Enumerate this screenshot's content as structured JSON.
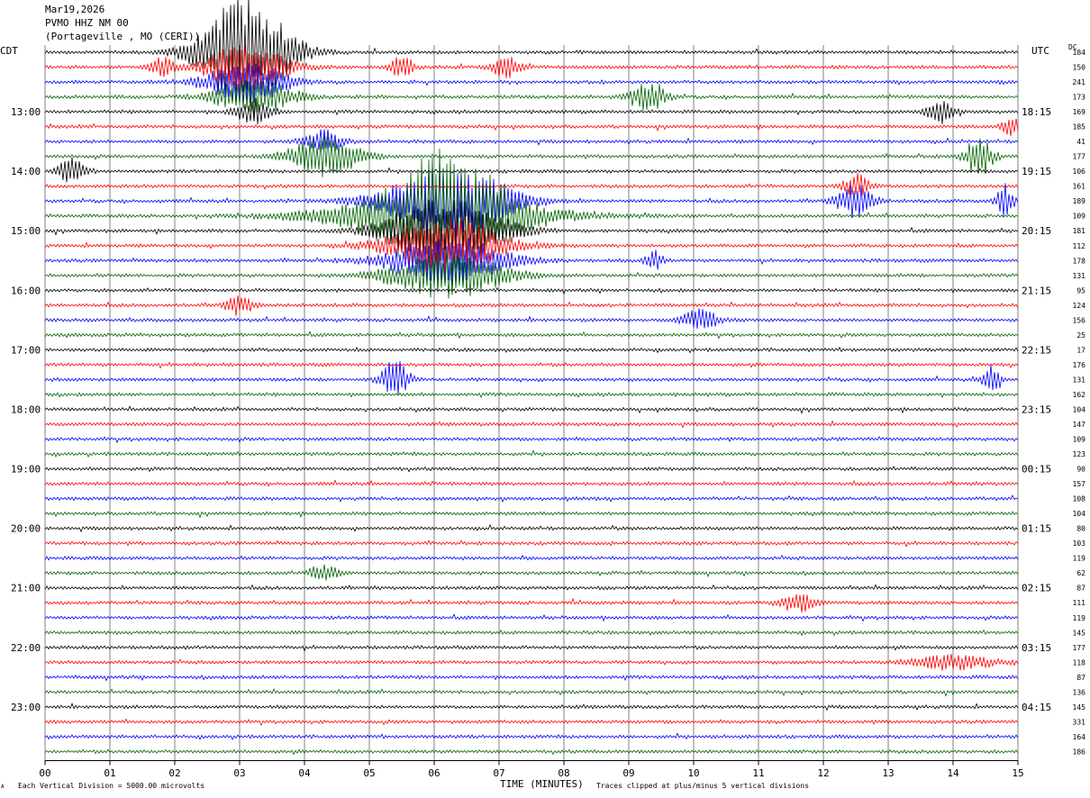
{
  "header": {
    "date": "Mar19,2026",
    "station": "PVMO HHZ NM 00",
    "location": "(Portageville , MO (CERI))"
  },
  "left_zone": "CDT",
  "right_zone": "UTC",
  "dc_label": "DC",
  "footer": {
    "scale_note": "Each Vertical Division = 5000.00 microvolts",
    "clip_note": "Traces clipped at plus/minus 5 vertical divisions",
    "corner_mark": "A"
  },
  "colors": {
    "cycle": [
      "#000000",
      "#ff0000",
      "#0000ff",
      "#006400"
    ],
    "grid": "#808080"
  },
  "chart_data": {
    "type": "line",
    "xlabel": "TIME (MINUTES)",
    "xlim": [
      0,
      15
    ],
    "x_ticks": [
      "00",
      "01",
      "02",
      "03",
      "04",
      "05",
      "06",
      "07",
      "08",
      "09",
      "10",
      "11",
      "12",
      "13",
      "14",
      "15"
    ],
    "left_hour_labels": [
      "13:00",
      "14:00",
      "15:00",
      "16:00",
      "17:00",
      "18:00",
      "19:00",
      "20:00",
      "21:00",
      "22:00",
      "23:00"
    ],
    "right_hour_labels": [
      "18:15",
      "19:15",
      "20:15",
      "21:15",
      "22:15",
      "23:15",
      "00:15",
      "01:15",
      "02:15",
      "03:15",
      "04:15"
    ],
    "dc_values": [
      "184",
      "150",
      "241",
      "173",
      "169",
      "185",
      "41",
      "177",
      "106",
      "161",
      "189",
      "109",
      "181",
      "112",
      "178",
      "131",
      "95",
      "124",
      "156",
      "25",
      "17",
      "176",
      "131",
      "162",
      "104",
      "147",
      "109",
      "123",
      "90",
      "157",
      "108",
      "104",
      "80",
      "103",
      "119",
      "62",
      "87",
      "111",
      "119",
      "145",
      "177",
      "118",
      "87",
      "136",
      "145",
      "331",
      "164",
      "186"
    ],
    "events": [
      {
        "trace": 0,
        "center": 3.1,
        "width": 1.0,
        "amp": 7.0
      },
      {
        "trace": 1,
        "center": 3.1,
        "width": 0.9,
        "amp": 3.0
      },
      {
        "trace": 2,
        "center": 3.1,
        "width": 0.9,
        "amp": 2.6
      },
      {
        "trace": 3,
        "center": 3.2,
        "width": 0.9,
        "amp": 2.2
      },
      {
        "trace": 4,
        "center": 3.2,
        "width": 0.4,
        "amp": 1.6
      },
      {
        "trace": 1,
        "center": 1.8,
        "width": 0.25,
        "amp": 1.3
      },
      {
        "trace": 1,
        "center": 5.5,
        "width": 0.25,
        "amp": 1.4
      },
      {
        "trace": 1,
        "center": 7.1,
        "width": 0.3,
        "amp": 1.3
      },
      {
        "trace": 3,
        "center": 9.3,
        "width": 0.4,
        "amp": 1.8
      },
      {
        "trace": 4,
        "center": 13.8,
        "width": 0.3,
        "amp": 1.5
      },
      {
        "trace": 5,
        "center": 14.9,
        "width": 0.2,
        "amp": 1.2
      },
      {
        "trace": 6,
        "center": 4.3,
        "width": 0.4,
        "amp": 1.4
      },
      {
        "trace": 7,
        "center": 4.3,
        "width": 0.8,
        "amp": 2.6
      },
      {
        "trace": 7,
        "center": 14.4,
        "width": 0.3,
        "amp": 2.6
      },
      {
        "trace": 8,
        "center": 0.4,
        "width": 0.3,
        "amp": 1.6
      },
      {
        "trace": 9,
        "center": 12.5,
        "width": 0.3,
        "amp": 1.5
      },
      {
        "trace": 10,
        "center": 12.5,
        "width": 0.4,
        "amp": 2.2
      },
      {
        "trace": 10,
        "center": 14.8,
        "width": 0.2,
        "amp": 2.0
      },
      {
        "trace": 11,
        "center": 6.0,
        "width": 2.6,
        "amp": 2.2
      },
      {
        "trace": 10,
        "center": 6.2,
        "width": 1.4,
        "amp": 4.8
      },
      {
        "trace": 11,
        "center": 6.2,
        "width": 1.3,
        "amp": 6.0
      },
      {
        "trace": 12,
        "center": 6.2,
        "width": 1.3,
        "amp": 4.5
      },
      {
        "trace": 13,
        "center": 6.2,
        "width": 1.3,
        "amp": 3.5
      },
      {
        "trace": 14,
        "center": 6.2,
        "width": 1.3,
        "amp": 3.0
      },
      {
        "trace": 15,
        "center": 6.2,
        "width": 1.3,
        "amp": 2.8
      },
      {
        "trace": 14,
        "center": 9.4,
        "width": 0.2,
        "amp": 1.2
      },
      {
        "trace": 17,
        "center": 3.0,
        "width": 0.3,
        "amp": 1.2
      },
      {
        "trace": 18,
        "center": 10.1,
        "width": 0.4,
        "amp": 1.4
      },
      {
        "trace": 22,
        "center": 5.4,
        "width": 0.3,
        "amp": 2.4
      },
      {
        "trace": 22,
        "center": 14.6,
        "width": 0.2,
        "amp": 2.0
      },
      {
        "trace": 35,
        "center": 4.3,
        "width": 0.3,
        "amp": 1.1
      },
      {
        "trace": 37,
        "center": 11.6,
        "width": 0.4,
        "amp": 1.2
      },
      {
        "trace": 41,
        "center": 14.0,
        "width": 0.9,
        "amp": 0.9
      }
    ]
  }
}
